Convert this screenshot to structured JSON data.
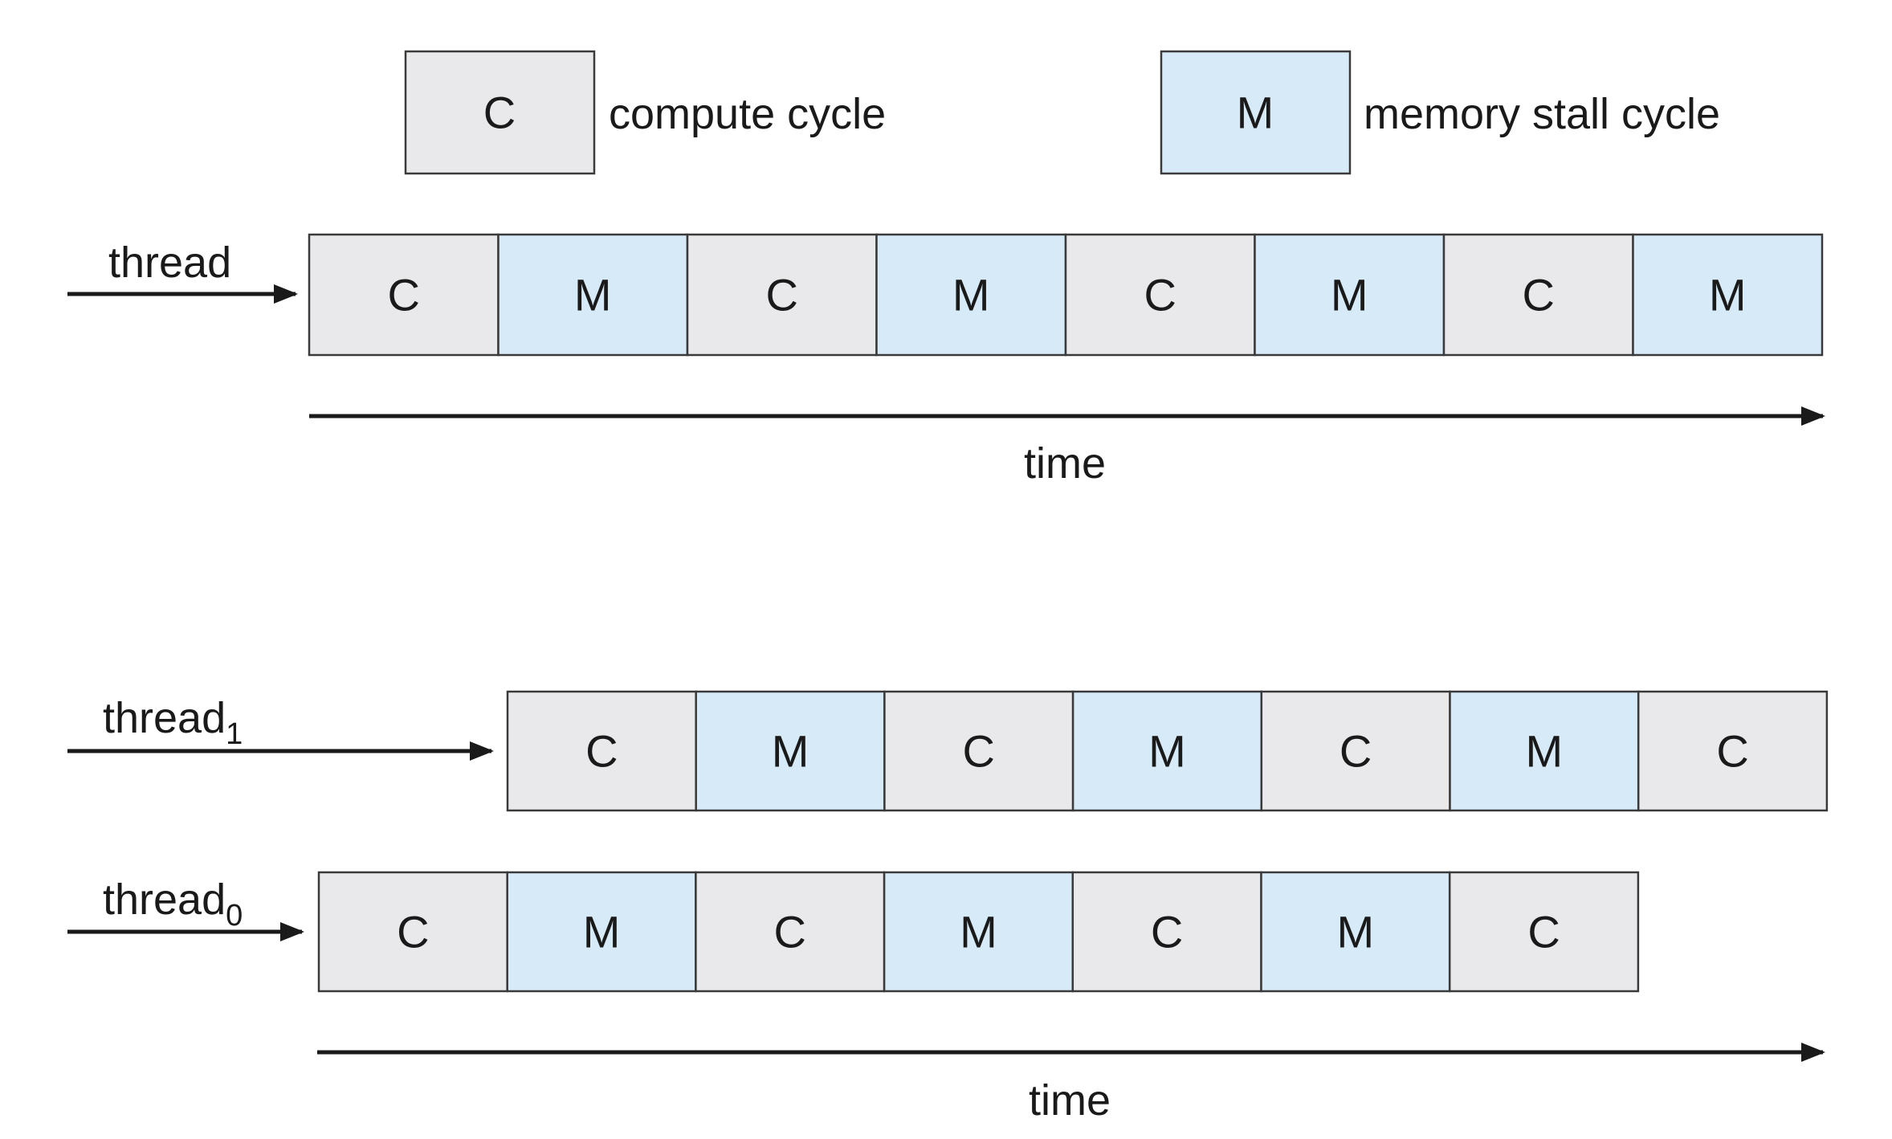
{
  "colors": {
    "compute": "#e9e9eb",
    "memory": "#d6eaf8",
    "line": "#1a1a1a"
  },
  "legend": {
    "compute": {
      "letter": "C",
      "label": "compute cycle"
    },
    "memory": {
      "letter": "M",
      "label": "memory stall cycle"
    }
  },
  "single": {
    "thread_label": "thread",
    "cells": [
      "C",
      "M",
      "C",
      "M",
      "C",
      "M",
      "C",
      "M"
    ],
    "time_label": "time"
  },
  "multi": {
    "thread1": {
      "label": "thread",
      "subscript": "1",
      "cells": [
        "C",
        "M",
        "C",
        "M",
        "C",
        "M",
        "C"
      ]
    },
    "thread0": {
      "label": "thread",
      "subscript": "0",
      "cells": [
        "C",
        "M",
        "C",
        "M",
        "C",
        "M",
        "C"
      ]
    },
    "time_label": "time"
  }
}
